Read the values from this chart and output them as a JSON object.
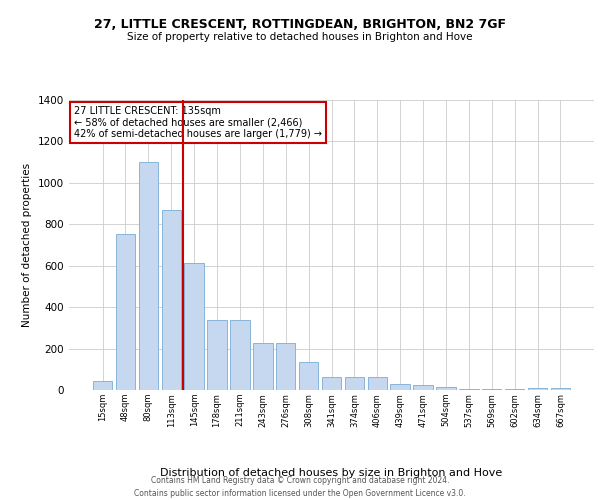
{
  "title1": "27, LITTLE CRESCENT, ROTTINGDEAN, BRIGHTON, BN2 7GF",
  "title2": "Size of property relative to detached houses in Brighton and Hove",
  "xlabel": "Distribution of detached houses by size in Brighton and Hove",
  "ylabel": "Number of detached properties",
  "footer1": "Contains HM Land Registry data © Crown copyright and database right 2024.",
  "footer2": "Contains public sector information licensed under the Open Government Licence v3.0.",
  "categories": [
    "15sqm",
    "48sqm",
    "80sqm",
    "113sqm",
    "145sqm",
    "178sqm",
    "211sqm",
    "243sqm",
    "276sqm",
    "308sqm",
    "341sqm",
    "374sqm",
    "406sqm",
    "439sqm",
    "471sqm",
    "504sqm",
    "537sqm",
    "569sqm",
    "602sqm",
    "634sqm",
    "667sqm"
  ],
  "values": [
    45,
    755,
    1100,
    870,
    615,
    340,
    340,
    225,
    225,
    135,
    65,
    65,
    65,
    30,
    25,
    15,
    5,
    5,
    5,
    10,
    10
  ],
  "bar_color": "#c5d8f0",
  "bar_edge_color": "#7aadd4",
  "vline_color": "#cc0000",
  "annotation_title": "27 LITTLE CRESCENT: 135sqm",
  "annotation_line1": "← 58% of detached houses are smaller (2,466)",
  "annotation_line2": "42% of semi-detached houses are larger (1,779) →",
  "annotation_box_color": "#ffffff",
  "annotation_box_edge": "#cc0000",
  "ylim": [
    0,
    1400
  ],
  "yticks": [
    0,
    200,
    400,
    600,
    800,
    1000,
    1200,
    1400
  ]
}
